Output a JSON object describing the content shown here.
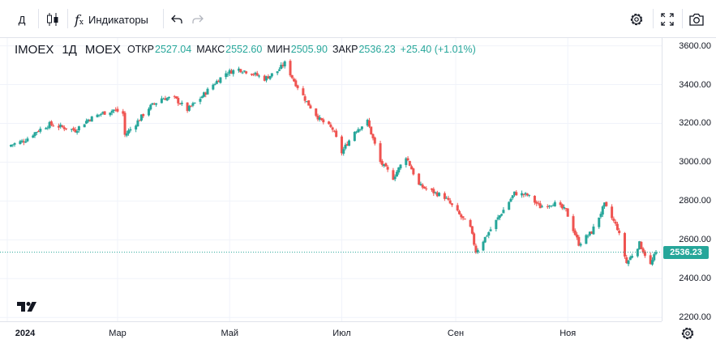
{
  "toolbar": {
    "interval_label": "Д",
    "indicators_label": "Индикаторы"
  },
  "legend": {
    "symbol": "IMOEX",
    "interval": "1Д",
    "exchange": "MOEX",
    "open_label": "ОТКР",
    "open_value": "2527.04",
    "high_label": "МАКС",
    "high_value": "2552.60",
    "low_label": "МИН",
    "low_value": "2505.90",
    "close_label": "ЗАКР",
    "close_value": "2536.23",
    "change": "+25.40 (+1.01%)"
  },
  "last_price_label": "2536.23",
  "colors": {
    "up": "#26a69a",
    "down": "#ef5350",
    "grid": "#f0f3fa"
  },
  "chart_data": {
    "type": "candlestick",
    "symbol": "IMOEX",
    "price_ticks": [
      "2200.00",
      "2400.00",
      "2600.00",
      "2800.00",
      "3000.00",
      "3200.00",
      "3400.00",
      "3600.00"
    ],
    "ylim": [
      2180,
      3640
    ],
    "time_ticks": [
      {
        "label": "2024",
        "bold": true
      },
      {
        "label": "Мар",
        "bold": false
      },
      {
        "label": "Май",
        "bold": false
      },
      {
        "label": "Июл",
        "bold": false
      },
      {
        "label": "Сен",
        "bold": false
      },
      {
        "label": "Ноя",
        "bold": false
      }
    ],
    "last_price": 2536.23,
    "close_path": [
      [
        "2024-01-03",
        3090
      ],
      [
        "2024-01-10",
        3110
      ],
      [
        "2024-01-17",
        3160
      ],
      [
        "2024-01-24",
        3195
      ],
      [
        "2024-01-31",
        3180
      ],
      [
        "2024-02-07",
        3165
      ],
      [
        "2024-02-14",
        3220
      ],
      [
        "2024-02-21",
        3250
      ],
      [
        "2024-02-28",
        3270
      ],
      [
        "2024-03-04",
        3250
      ],
      [
        "2024-03-05",
        3140
      ],
      [
        "2024-03-11",
        3200
      ],
      [
        "2024-03-18",
        3280
      ],
      [
        "2024-03-25",
        3330
      ],
      [
        "2024-04-01",
        3330
      ],
      [
        "2024-04-08",
        3270
      ],
      [
        "2024-04-15",
        3330
      ],
      [
        "2024-04-22",
        3400
      ],
      [
        "2024-04-29",
        3460
      ],
      [
        "2024-05-06",
        3480
      ],
      [
        "2024-05-13",
        3460
      ],
      [
        "2024-05-20",
        3430
      ],
      [
        "2024-05-27",
        3470
      ],
      [
        "2024-05-31",
        3510
      ],
      [
        "2024-06-05",
        3420
      ],
      [
        "2024-06-12",
        3310
      ],
      [
        "2024-06-19",
        3220
      ],
      [
        "2024-06-26",
        3170
      ],
      [
        "2024-07-01",
        3050
      ],
      [
        "2024-07-08",
        3160
      ],
      [
        "2024-07-15",
        3210
      ],
      [
        "2024-07-22",
        3000
      ],
      [
        "2024-07-29",
        2920
      ],
      [
        "2024-08-05",
        3030
      ],
      [
        "2024-08-12",
        2880
      ],
      [
        "2024-08-19",
        2850
      ],
      [
        "2024-08-26",
        2820
      ],
      [
        "2024-09-02",
        2740
      ],
      [
        "2024-09-09",
        2660
      ],
      [
        "2024-09-12",
        2540
      ],
      [
        "2024-09-19",
        2640
      ],
      [
        "2024-09-26",
        2740
      ],
      [
        "2024-10-03",
        2840
      ],
      [
        "2024-10-10",
        2830
      ],
      [
        "2024-10-17",
        2770
      ],
      [
        "2024-10-24",
        2790
      ],
      [
        "2024-10-31",
        2750
      ],
      [
        "2024-11-07",
        2580
      ],
      [
        "2024-11-14",
        2640
      ],
      [
        "2024-11-21",
        2780
      ],
      [
        "2024-11-28",
        2660
      ],
      [
        "2024-12-03",
        2480
      ],
      [
        "2024-12-10",
        2580
      ],
      [
        "2024-12-16",
        2470
      ],
      [
        "2024-12-19",
        2536.23
      ]
    ]
  }
}
